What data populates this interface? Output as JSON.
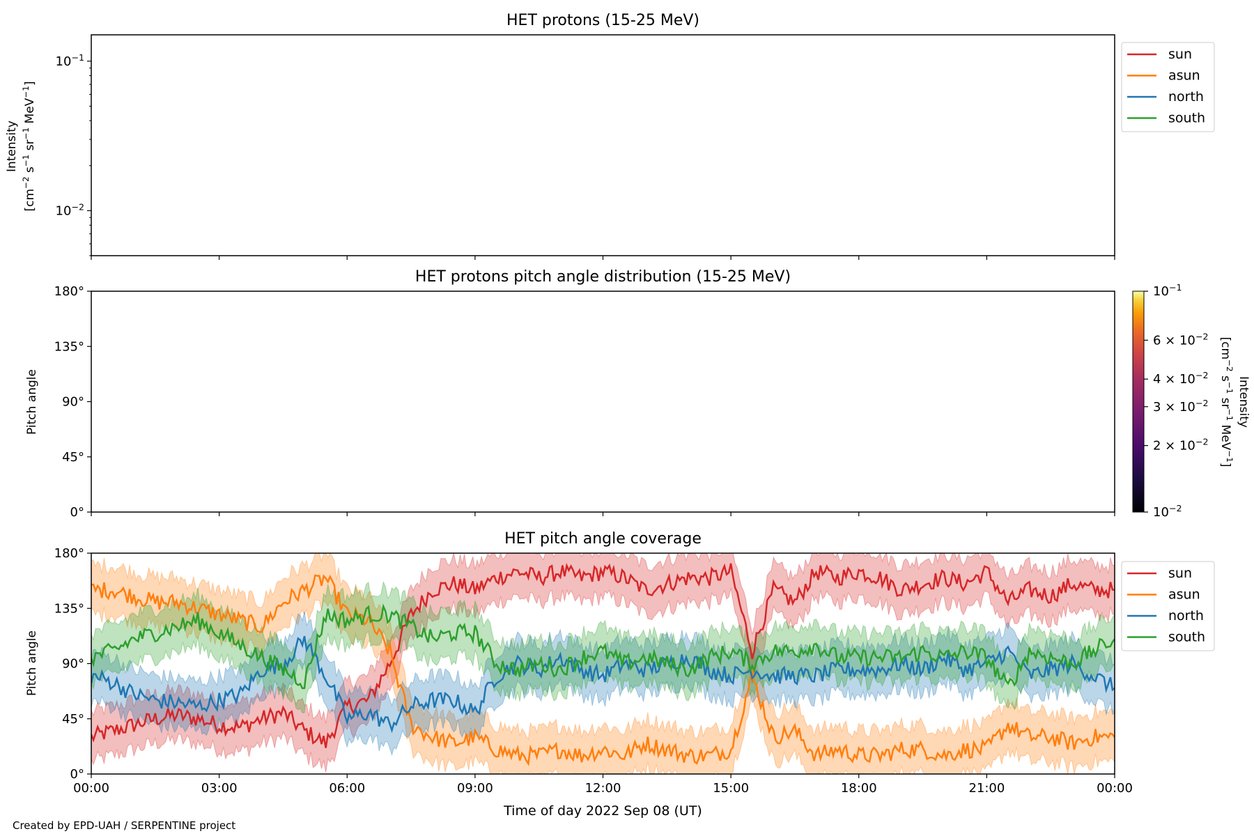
{
  "colors": {
    "sun": "#d62728",
    "asun": "#ff7f0e",
    "north": "#1f77b4",
    "south": "#2ca02c"
  },
  "legend_entries": [
    "sun",
    "asun",
    "north",
    "south"
  ],
  "x_axis": {
    "label": "Time of day 2022 Sep 08 (UT)",
    "range_hours": [
      0,
      24
    ],
    "tick_hours": [
      0,
      3,
      6,
      9,
      12,
      15,
      18,
      21,
      24
    ],
    "tick_labels": [
      "00:00",
      "03:00",
      "06:00",
      "09:00",
      "12:00",
      "15:00",
      "18:00",
      "21:00",
      "00:00"
    ]
  },
  "panel1": {
    "title": "HET protons (15-25 MeV)",
    "ylabel_line1": "Intensity",
    "ylabel_line2_parts": [
      "[cm",
      "−2",
      " s",
      "−1",
      " sr",
      "−1",
      " MeV",
      "−1",
      "]"
    ],
    "yscale": "log",
    "ylim": [
      0.005,
      0.15
    ],
    "ytick_values": [
      0.01,
      0.1
    ],
    "ytick_labels": [
      {
        "base": "10",
        "exp": "−2"
      },
      {
        "base": "10",
        "exp": "−1"
      }
    ]
  },
  "panel2": {
    "title": "HET protons pitch angle distribution (15-25 MeV)",
    "ylabel": "Pitch angle",
    "ytick_labels": [
      "0°",
      "45°",
      "90°",
      "135°",
      "180°"
    ],
    "colorbar": {
      "label_line1": "Intensity",
      "label_line2_parts": [
        "[cm",
        "−2",
        " s",
        "−1",
        " sr",
        "−1",
        " MeV",
        "−1",
        "]"
      ],
      "scale": "log",
      "range": [
        0.01,
        0.1
      ],
      "colormap": "inferno",
      "ticks": [
        {
          "value": 0.1,
          "coef": "",
          "base": "10",
          "exp": "−1"
        },
        {
          "value": 0.06,
          "coef": "6 × ",
          "base": "10",
          "exp": "−2"
        },
        {
          "value": 0.04,
          "coef": "4 × ",
          "base": "10",
          "exp": "−2"
        },
        {
          "value": 0.03,
          "coef": "3 × ",
          "base": "10",
          "exp": "−2"
        },
        {
          "value": 0.02,
          "coef": "2 × ",
          "base": "10",
          "exp": "−2"
        },
        {
          "value": 0.01,
          "coef": "",
          "base": "10",
          "exp": "−2"
        }
      ]
    }
  },
  "panel3": {
    "title": "HET pitch angle coverage",
    "ylabel": "Pitch angle",
    "ytick_labels": [
      "0°",
      "45°",
      "90°",
      "135°",
      "180°"
    ]
  },
  "footer": {
    "credit": "Created by EPD-UAH / SERPENTINE project"
  },
  "chart_data": [
    {
      "type": "line",
      "title": "HET protons (15-25 MeV)",
      "xlabel": "",
      "ylabel": "Intensity [cm−2 s−1 sr−1 MeV−1]",
      "yscale": "log",
      "ylim": [
        0.005,
        0.15
      ],
      "series": [
        {
          "name": "sun",
          "values": []
        },
        {
          "name": "asun",
          "values": []
        },
        {
          "name": "north",
          "values": []
        },
        {
          "name": "south",
          "values": []
        }
      ],
      "legend": "outside-right-top"
    },
    {
      "type": "heatmap",
      "title": "HET protons pitch angle distribution (15-25 MeV)",
      "ylabel": "Pitch angle",
      "ylim": [
        0,
        180
      ],
      "values": [],
      "colorbar_range": [
        0.01,
        0.1
      ]
    },
    {
      "type": "line",
      "title": "HET pitch angle coverage",
      "xlabel": "Time of day 2022 Sep 08 (UT)",
      "ylabel": "Pitch angle",
      "ylim": [
        0,
        180
      ],
      "x_hours": [
        0,
        0.5,
        1,
        1.5,
        2,
        2.5,
        3,
        3.5,
        4,
        4.5,
        5,
        5.5,
        6,
        6.5,
        7,
        7.5,
        8,
        8.5,
        9,
        9.5,
        10,
        10.5,
        11,
        11.5,
        12,
        12.5,
        13,
        13.5,
        14,
        14.5,
        15,
        15.5,
        16,
        16.5,
        17,
        17.5,
        18,
        18.5,
        19,
        19.5,
        20,
        20.5,
        21,
        21.5,
        22,
        22.5,
        23,
        23.5,
        24
      ],
      "series": [
        {
          "name": "sun",
          "values": [
            30,
            35,
            40,
            45,
            48,
            45,
            40,
            38,
            45,
            50,
            35,
            25,
            55,
            60,
            90,
            130,
            150,
            155,
            150,
            160,
            165,
            160,
            165,
            160,
            165,
            160,
            150,
            155,
            160,
            160,
            165,
            100,
            150,
            140,
            165,
            160,
            165,
            160,
            150,
            155,
            160,
            155,
            165,
            140,
            150,
            145,
            155,
            150,
            150
          ]
        },
        {
          "name": "asun",
          "values": [
            150,
            150,
            145,
            140,
            140,
            135,
            130,
            125,
            120,
            140,
            150,
            160,
            130,
            125,
            100,
            40,
            30,
            25,
            30,
            20,
            15,
            15,
            20,
            15,
            20,
            15,
            25,
            20,
            15,
            15,
            20,
            80,
            30,
            35,
            15,
            20,
            15,
            15,
            20,
            20,
            15,
            20,
            20,
            40,
            30,
            30,
            25,
            30,
            30
          ]
        },
        {
          "name": "north",
          "values": [
            80,
            75,
            65,
            60,
            58,
            55,
            60,
            65,
            85,
            90,
            110,
            80,
            45,
            50,
            40,
            55,
            60,
            60,
            50,
            80,
            90,
            85,
            95,
            85,
            80,
            90,
            85,
            90,
            95,
            85,
            80,
            85,
            80,
            80,
            80,
            85,
            85,
            85,
            90,
            85,
            95,
            85,
            90,
            100,
            80,
            85,
            90,
            80,
            70
          ]
        },
        {
          "name": "south",
          "values": [
            95,
            100,
            110,
            115,
            120,
            125,
            115,
            105,
            95,
            85,
            75,
            130,
            125,
            130,
            130,
            120,
            110,
            115,
            115,
            90,
            85,
            90,
            85,
            95,
            100,
            90,
            95,
            90,
            85,
            95,
            100,
            90,
            100,
            100,
            105,
            95,
            95,
            95,
            95,
            100,
            95,
            100,
            95,
            70,
            100,
            95,
            90,
            100,
            110
          ]
        }
      ],
      "band_halfwidth_deg": 20,
      "legend": "outside-right-top"
    }
  ]
}
